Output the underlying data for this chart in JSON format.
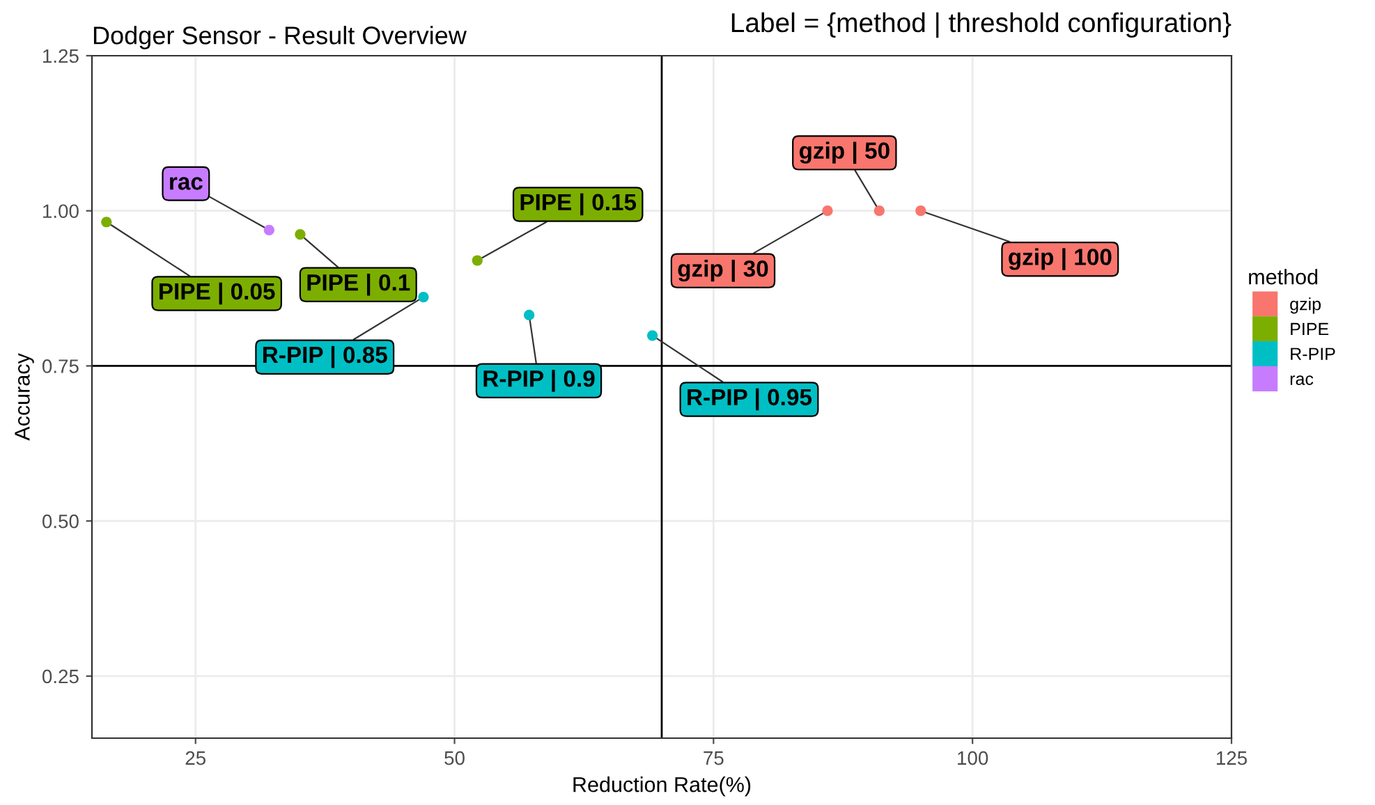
{
  "chart_data": {
    "type": "scatter",
    "title": "Dodger Sensor - Result Overview",
    "subtitle": "Label = {method | threshold configuration}",
    "xlabel": "Reduction Rate(%)",
    "ylabel": "Accuracy",
    "legend_title": "method",
    "legend": "right",
    "grid": true,
    "marker": "circle",
    "xlim": [
      15,
      125
    ],
    "xticks": [
      25,
      50,
      75,
      100,
      125
    ],
    "ylim": [
      0.15,
      1.25
    ],
    "yticks": [
      {
        "value": 0.25,
        "label": "0.25"
      },
      {
        "value": 0.5,
        "label": "0.50"
      },
      {
        "value": 0.75,
        "label": "0.75"
      },
      {
        "value": 1.0,
        "label": "1.00"
      },
      {
        "value": 1.25,
        "label": "1.25"
      }
    ],
    "series": [
      {
        "name": "gzip",
        "color": "#f8766d",
        "x": [
          86,
          91,
          95
        ],
        "values": [
          1.0,
          1.0,
          1.0
        ]
      },
      {
        "name": "PIPE",
        "color": "#7cae00",
        "x": [
          16.4,
          35.1,
          52.2
        ],
        "values": [
          0.982,
          0.962,
          0.92
        ]
      },
      {
        "name": "R-PIP",
        "color": "#00bfc4",
        "x": [
          47,
          57.2,
          69.1
        ],
        "values": [
          0.861,
          0.832,
          0.799
        ]
      },
      {
        "name": "rac",
        "color": "#c77cff",
        "x": [
          32.1
        ],
        "values": [
          0.969
        ]
      }
    ],
    "annotations": [
      {
        "text": "gzip | 30",
        "x": 86,
        "y": 1.0
      },
      {
        "text": "gzip | 50",
        "x": 91,
        "y": 1.0
      },
      {
        "text": "gzip | 100",
        "x": 95,
        "y": 1.0
      },
      {
        "text": "PIPE | 0.05",
        "x": 16.4,
        "y": 0.982
      },
      {
        "text": "PIPE | 0.1",
        "x": 35.1,
        "y": 0.962
      },
      {
        "text": "PIPE | 0.15",
        "x": 52.2,
        "y": 0.92
      },
      {
        "text": "R-PIP | 0.85",
        "x": 47,
        "y": 0.861
      },
      {
        "text": "R-PIP | 0.9",
        "x": 57.2,
        "y": 0.832
      },
      {
        "text": "R-PIP | 0.95",
        "x": 69.1,
        "y": 0.799
      },
      {
        "text": "rac",
        "x": 32.1,
        "y": 0.969
      }
    ],
    "ref_lines": [
      {
        "axis": "x",
        "value": 70,
        "color": "#000000"
      },
      {
        "axis": "y",
        "value": 0.75,
        "color": "#000000"
      }
    ]
  }
}
